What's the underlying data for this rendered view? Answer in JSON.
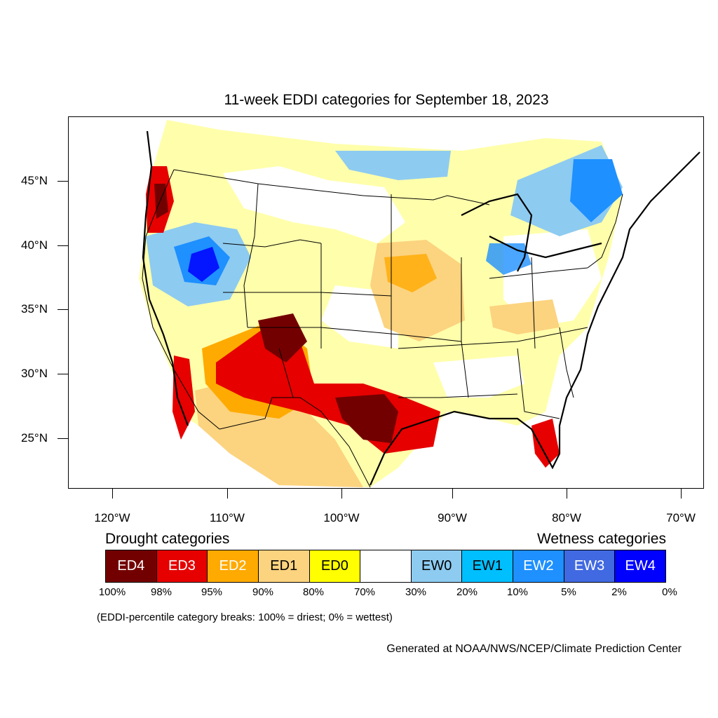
{
  "title": "11-week EDDI categories for September 18, 2023",
  "lat_labels": [
    "45°N",
    "40°N",
    "35°N",
    "30°N",
    "25°N"
  ],
  "lon_labels": [
    "120°W",
    "110°W",
    "100°W",
    "90°W",
    "80°W",
    "70°W"
  ],
  "legend": {
    "drought_heading": "Drought categories",
    "wetness_heading": "Wetness categories",
    "categories": [
      {
        "label": "ED4",
        "color": "#730000",
        "text_color": "#ffffff"
      },
      {
        "label": "ED3",
        "color": "#e60000",
        "text_color": "#ffffff"
      },
      {
        "label": "ED2",
        "color": "#ffaa00",
        "text_color": "#ffffff"
      },
      {
        "label": "ED1",
        "color": "#fcd37f",
        "text_color": "#000000"
      },
      {
        "label": "ED0",
        "color": "#ffff00",
        "text_color": "#000000"
      },
      {
        "label": "",
        "color": "#ffffff",
        "text_color": "#000000"
      },
      {
        "label": "EW0",
        "color": "#8ecbf0",
        "text_color": "#000000"
      },
      {
        "label": "EW1",
        "color": "#00bfff",
        "text_color": "#000000"
      },
      {
        "label": "EW2",
        "color": "#1e90ff",
        "text_color": "#ffffff"
      },
      {
        "label": "EW3",
        "color": "#4169e1",
        "text_color": "#ffffff"
      },
      {
        "label": "EW4",
        "color": "#0000ff",
        "text_color": "#ffffff"
      }
    ],
    "percent_breaks": [
      "100%",
      "98%",
      "95%",
      "90%",
      "80%",
      "70%",
      "30%",
      "20%",
      "10%",
      "5%",
      "2%",
      "0%"
    ]
  },
  "footnote": "(EDDI-percentile category breaks: 100% = driest; 0% = wettest)",
  "credit": "Generated at NOAA/NWS/NCEP/Climate Prediction Center"
}
